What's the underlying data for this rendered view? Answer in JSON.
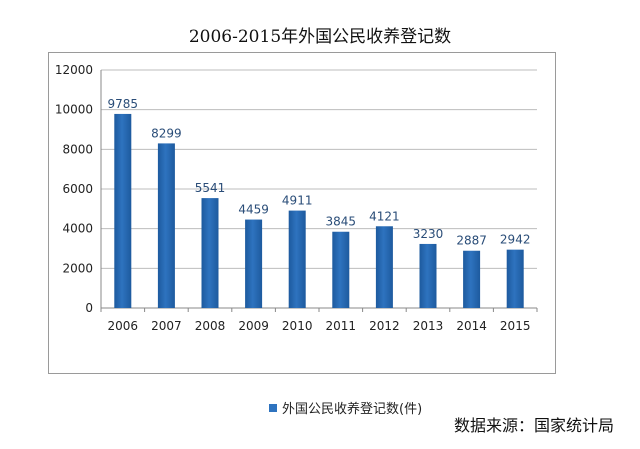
{
  "title": "2006-2015年外国公民收养登记数",
  "source": "数据来源：国家统计局",
  "colors": {
    "bar": "#2e73bf",
    "bar_dark": "#1d5a9e",
    "label": "#2a4d78",
    "grid": "#bdbdbd"
  },
  "chart_data": {
    "type": "bar",
    "categories": [
      "2006",
      "2007",
      "2008",
      "2009",
      "2010",
      "2011",
      "2012",
      "2013",
      "2014",
      "2015"
    ],
    "series": [
      {
        "name": "外国公民收养登记数(件)",
        "values": [
          9785,
          8299,
          5541,
          4459,
          4911,
          3845,
          4121,
          3230,
          2887,
          2942
        ]
      }
    ],
    "yticks": [
      "0",
      "2000",
      "4000",
      "6000",
      "8000",
      "10000",
      "12000"
    ],
    "ylim": [
      0,
      12000
    ],
    "grid": true,
    "legend_position": "bottom"
  }
}
